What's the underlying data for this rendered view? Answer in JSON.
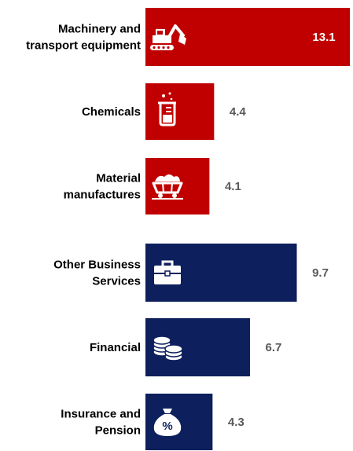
{
  "chart_data": {
    "type": "bar",
    "orientation": "horizontal",
    "title": "",
    "xlabel": "",
    "ylabel": "",
    "xlim": [
      0,
      13.1
    ],
    "grid": false,
    "legend": "none",
    "categories": [
      "Machinery and transport equipment",
      "Chemicals",
      "Material manufactures",
      "Other Business Services",
      "Financial",
      "Insurance and Pension"
    ],
    "category_label_lines": [
      [
        "Machinery  and",
        "transport equipment"
      ],
      [
        "Chemicals"
      ],
      [
        "Material",
        "manufactures"
      ],
      [
        "Other Business",
        "Services"
      ],
      [
        "Financial"
      ],
      [
        "Insurance and",
        "Pension"
      ]
    ],
    "values": [
      13.1,
      4.4,
      4.1,
      9.7,
      6.7,
      4.3
    ],
    "value_labels": [
      "13.1",
      "4.4",
      "4.1",
      "9.7",
      "6.7",
      "4.3"
    ],
    "icons": [
      "excavator-icon",
      "beaker-icon",
      "mine-cart-icon",
      "briefcase-icon",
      "coins-icon",
      "money-bag-icon"
    ],
    "bar_colors": [
      "#c00000",
      "#c00000",
      "#c00000",
      "#0d1f5c",
      "#0d1f5c",
      "#0d1f5c"
    ],
    "value_label_color_inside": "#ffffff",
    "value_label_color_outside": "#595959",
    "icon_color": "#ffffff",
    "percent_symbol": "%"
  }
}
